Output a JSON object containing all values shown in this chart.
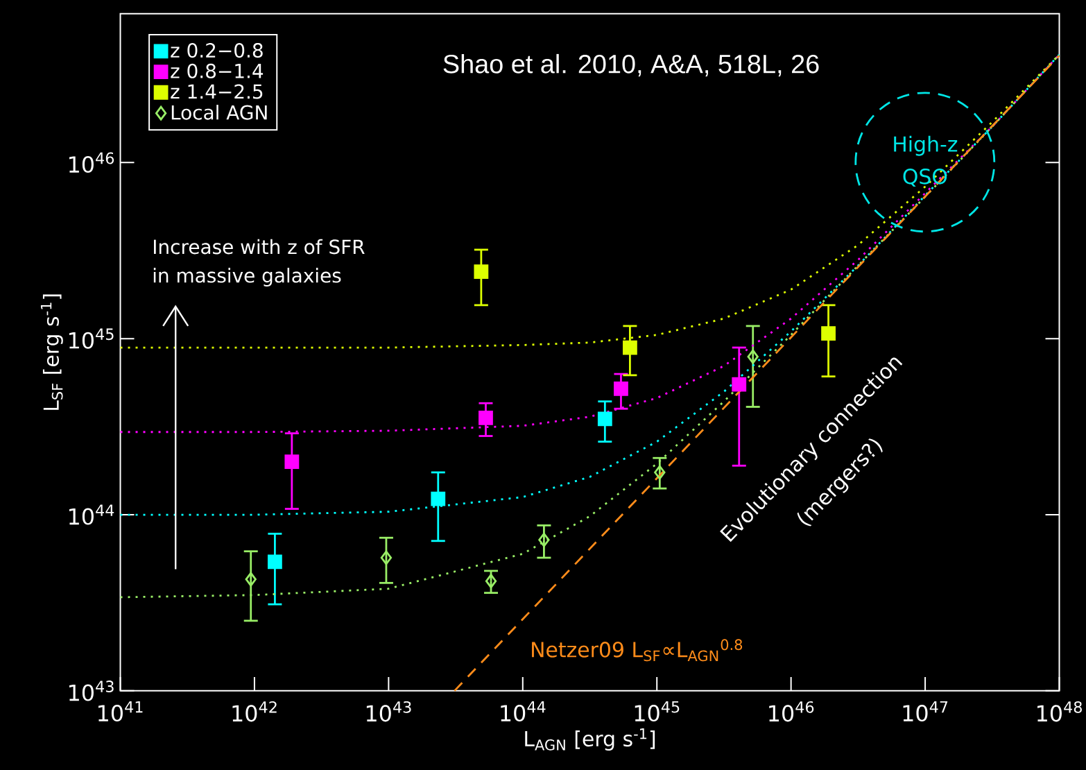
{
  "chart_data": {
    "type": "scatter",
    "xlabel": "L$_{AGN}$ [erg s$^{-1}$]",
    "ylabel": "L$_{SF}$ [erg s$^{-1}$]",
    "log": "xy",
    "xlim": [
      1e+41,
      1e+48
    ],
    "ylim": [
      1e+43,
      7e+46
    ],
    "xticks": [
      {
        "value": 1e+41,
        "label": "10$^{41}$"
      },
      {
        "value": 1e+42,
        "label": "10$^{42}$"
      },
      {
        "value": 1e+43,
        "label": "10$^{43}$"
      },
      {
        "value": 1e+44,
        "label": "10$^{44}$"
      },
      {
        "value": 1e+45,
        "label": "10$^{45}$"
      },
      {
        "value": 1e+46,
        "label": "10$^{46}$"
      },
      {
        "value": 1e+47,
        "label": "10$^{47}$"
      },
      {
        "value": 1e+48,
        "label": "10$^{48}$"
      }
    ],
    "yticks": [
      {
        "value": 1e+43,
        "label": "10$^{43}$"
      },
      {
        "value": 1e+44,
        "label": "10$^{44}$"
      },
      {
        "value": 1e+45,
        "label": "10$^{45}$"
      },
      {
        "value": 1e+46,
        "label": "10$^{46}$"
      }
    ],
    "legend": "top left",
    "series": [
      {
        "name": "z 0.2−0.8",
        "color": "#00ffff",
        "marker": "square",
        "x": [
          1.42e+42,
          2.34e+43,
          4.1e+44
        ],
        "values": [
          5.4e+43,
          1.23e+44,
          3.5e+44
        ],
        "errors": [
          [
            3.1e+43,
            7.8e+43
          ],
          [
            7.1e+43,
            1.74e+44
          ],
          [
            2.6e+44,
            4.4e+44
          ]
        ]
      },
      {
        "name": "z 0.8−1.4",
        "color": "#ff00ff",
        "marker": "square",
        "x": [
          1.9e+42,
          5.3e+43,
          5.4e+44,
          4.1e+45
        ],
        "values": [
          2e+44,
          3.55e+44,
          5.2e+44,
          5.5e+44
        ],
        "errors": [
          [
            1.08e+44,
            2.9e+44
          ],
          [
            2.8e+44,
            4.3e+44
          ],
          [
            4e+44,
            6.3e+44
          ],
          [
            1.9e+44,
            8.9e+44
          ]
        ]
      },
      {
        "name": "z 1.4−2.5",
        "color": "#ddff00",
        "marker": "square",
        "x": [
          4.9e+43,
          6.3e+44,
          1.9e+46
        ],
        "values": [
          2.4e+45,
          8.9e+44,
          1.07e+45
        ],
        "errors": [
          [
            1.55e+45,
            3.2e+45
          ],
          [
            6.2e+44,
            1.18e+45
          ],
          [
            6.1e+44,
            1.55e+45
          ]
        ]
      },
      {
        "name": "Local AGN",
        "color": "#99ee66",
        "marker": "diamond",
        "x": [
          9.4e+41,
          9.6e+42,
          5.8e+43,
          1.44e+44,
          1.05e+45,
          5.2e+45
        ],
        "values": [
          4.3e+43,
          5.7e+43,
          4.2e+43,
          7.2e+43,
          1.74e+44,
          7.9e+44
        ],
        "errors": [
          [
            2.5e+43,
            6.2e+43
          ],
          [
            4.1e+43,
            7.4e+43
          ],
          [
            3.6e+43,
            4.8e+43
          ],
          [
            5.7e+43,
            8.7e+43
          ],
          [
            1.41e+44,
            2.1e+44
          ],
          [
            4.1e+44,
            1.18e+45
          ]
        ]
      },
      {
        "type": "line",
        "color": "#ddff00",
        "line_style": "dotted",
        "marker": "none",
        "x": [
          1e+41,
          1e+42,
          1e+43,
          1e+44,
          3.16e+44,
          1e+45,
          3.16e+45,
          1e+46,
          3.16e+46,
          1e+47,
          3.16e+47,
          1e+48
        ],
        "values": [
          8.9e+44,
          8.9e+44,
          8.9e+44,
          9.2e+44,
          9.5e+44,
          1.05e+45,
          1.3e+45,
          1.9e+45,
          3.4e+45,
          7.3e+45,
          1.7e+46,
          4.1e+46
        ]
      },
      {
        "type": "line",
        "color": "#ff00ff",
        "line_style": "dotted",
        "marker": "none",
        "x": [
          1e+41,
          1e+42,
          1e+43,
          1e+44,
          3.16e+44,
          1e+45,
          3.16e+45,
          1e+46,
          3.16e+46,
          1e+47,
          3.16e+47,
          1e+48
        ],
        "values": [
          2.95e+44,
          2.95e+44,
          3e+44,
          3.2e+44,
          3.6e+44,
          4.6e+44,
          7e+44,
          1.3e+45,
          2.8e+45,
          6.7e+45,
          1.6e+46,
          4.1e+46
        ]
      },
      {
        "type": "line",
        "color": "#00ffff",
        "line_style": "dotted",
        "marker": "none",
        "x": [
          1e+41,
          1e+42,
          1e+43,
          1e+44,
          3.16e+44,
          1e+45,
          3.16e+45,
          1e+46,
          3.16e+46,
          1e+47,
          3.16e+47,
          1e+48
        ],
        "values": [
          1e+44,
          1e+44,
          1.04e+44,
          1.26e+44,
          1.64e+44,
          2.6e+44,
          5e+44,
          1.1e+45,
          2.6e+45,
          6.5e+45,
          1.6e+46,
          4.1e+46
        ]
      },
      {
        "type": "line",
        "color": "#99ee66",
        "line_style": "dotted",
        "marker": "none",
        "x": [
          1e+41,
          1e+42,
          1e+43,
          1e+44,
          3.16e+44,
          1e+45,
          3.16e+45,
          1e+46,
          3.16e+46,
          1e+47,
          3.16e+47,
          1e+48
        ],
        "values": [
          3.4e+43,
          3.5e+43,
          3.8e+43,
          6e+43,
          9.8e+43,
          1.95e+44,
          4.4e+44,
          1.05e+45,
          2.6e+45,
          6.4e+45,
          1.6e+46,
          4.1e+46
        ]
      },
      {
        "type": "line",
        "name": "Netzer09 L$_{SF}$∝L$_{AGN}$$^{0.8}$",
        "color": "#ff8c1a",
        "line_style": "dashed",
        "marker": "none",
        "x": [
          3.1e+43,
          1e+48
        ],
        "values": [
          1e+43,
          4.05e+46
        ]
      }
    ],
    "annotations": [
      "Shao et al. 2010, A&A, 518L, 26",
      "Increase with z of SFR",
      "in massive galaxies",
      "Evolutionary connection",
      "(mergers?)",
      "High-z",
      "QSO"
    ]
  }
}
